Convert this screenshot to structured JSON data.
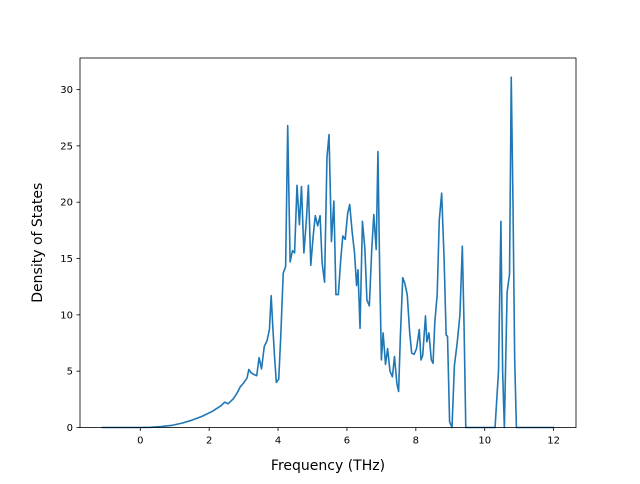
{
  "chart_data": {
    "type": "line",
    "title": "",
    "xlabel": "Frequency (THz)",
    "ylabel": "Density of States",
    "xlim": [
      -1.75,
      12.65
    ],
    "ylim": [
      0,
      32.8
    ],
    "xticks": [
      0,
      2,
      4,
      6,
      8,
      10,
      12
    ],
    "yticks": [
      0,
      5,
      10,
      15,
      20,
      25,
      30
    ],
    "grid": false,
    "series": [
      {
        "color": "#1f77b4",
        "points": [
          [
            -1.1,
            0.0
          ],
          [
            0.0,
            0.0
          ],
          [
            0.3,
            0.02
          ],
          [
            0.6,
            0.08
          ],
          [
            0.9,
            0.18
          ],
          [
            1.2,
            0.38
          ],
          [
            1.5,
            0.65
          ],
          [
            1.8,
            1.0
          ],
          [
            2.1,
            1.45
          ],
          [
            2.35,
            1.95
          ],
          [
            2.45,
            2.25
          ],
          [
            2.55,
            2.1
          ],
          [
            2.7,
            2.55
          ],
          [
            2.8,
            3.0
          ],
          [
            2.9,
            3.6
          ],
          [
            3.0,
            3.95
          ],
          [
            3.1,
            4.4
          ],
          [
            3.15,
            5.15
          ],
          [
            3.22,
            4.85
          ],
          [
            3.3,
            4.7
          ],
          [
            3.38,
            4.6
          ],
          [
            3.45,
            6.2
          ],
          [
            3.52,
            5.2
          ],
          [
            3.6,
            7.2
          ],
          [
            3.68,
            7.7
          ],
          [
            3.75,
            8.7
          ],
          [
            3.8,
            11.7
          ],
          [
            3.85,
            8.8
          ],
          [
            3.9,
            6.2
          ],
          [
            3.95,
            4.0
          ],
          [
            4.02,
            4.3
          ],
          [
            4.08,
            8.2
          ],
          [
            4.15,
            13.7
          ],
          [
            4.22,
            14.3
          ],
          [
            4.28,
            26.8
          ],
          [
            4.35,
            14.7
          ],
          [
            4.42,
            15.7
          ],
          [
            4.48,
            15.5
          ],
          [
            4.55,
            21.5
          ],
          [
            4.62,
            18.0
          ],
          [
            4.68,
            21.4
          ],
          [
            4.75,
            15.5
          ],
          [
            4.82,
            18.3
          ],
          [
            4.88,
            21.5
          ],
          [
            4.95,
            14.4
          ],
          [
            5.02,
            17.0
          ],
          [
            5.08,
            18.8
          ],
          [
            5.15,
            17.9
          ],
          [
            5.22,
            18.8
          ],
          [
            5.28,
            14.6
          ],
          [
            5.35,
            12.9
          ],
          [
            5.42,
            24.0
          ],
          [
            5.48,
            26.0
          ],
          [
            5.55,
            16.5
          ],
          [
            5.62,
            20.1
          ],
          [
            5.68,
            11.8
          ],
          [
            5.75,
            11.8
          ],
          [
            5.82,
            14.9
          ],
          [
            5.88,
            17.0
          ],
          [
            5.95,
            16.7
          ],
          [
            6.02,
            19.0
          ],
          [
            6.08,
            19.8
          ],
          [
            6.15,
            17.4
          ],
          [
            6.22,
            15.5
          ],
          [
            6.28,
            12.6
          ],
          [
            6.32,
            14.0
          ],
          [
            6.38,
            8.8
          ],
          [
            6.45,
            18.3
          ],
          [
            6.52,
            15.9
          ],
          [
            6.58,
            11.3
          ],
          [
            6.65,
            10.8
          ],
          [
            6.72,
            15.8
          ],
          [
            6.78,
            18.9
          ],
          [
            6.85,
            15.8
          ],
          [
            6.9,
            24.5
          ],
          [
            6.95,
            14.0
          ],
          [
            7.0,
            6.0
          ],
          [
            7.05,
            8.4
          ],
          [
            7.12,
            5.6
          ],
          [
            7.18,
            7.0
          ],
          [
            7.25,
            5.0
          ],
          [
            7.32,
            4.5
          ],
          [
            7.38,
            6.3
          ],
          [
            7.45,
            3.9
          ],
          [
            7.5,
            3.2
          ],
          [
            7.55,
            8.0
          ],
          [
            7.62,
            13.3
          ],
          [
            7.68,
            12.8
          ],
          [
            7.75,
            11.8
          ],
          [
            7.82,
            8.5
          ],
          [
            7.88,
            6.6
          ],
          [
            7.95,
            6.5
          ],
          [
            8.02,
            7.0
          ],
          [
            8.1,
            8.7
          ],
          [
            8.15,
            6.0
          ],
          [
            8.2,
            6.4
          ],
          [
            8.28,
            9.9
          ],
          [
            8.32,
            7.6
          ],
          [
            8.38,
            8.4
          ],
          [
            8.45,
            6.0
          ],
          [
            8.5,
            5.7
          ],
          [
            8.55,
            9.3
          ],
          [
            8.62,
            11.8
          ],
          [
            8.68,
            18.4
          ],
          [
            8.75,
            20.8
          ],
          [
            8.82,
            15.0
          ],
          [
            8.88,
            8.2
          ],
          [
            8.92,
            8.1
          ],
          [
            8.98,
            0.5
          ],
          [
            9.05,
            0.0
          ],
          [
            9.12,
            5.5
          ],
          [
            9.2,
            7.5
          ],
          [
            9.28,
            10.0
          ],
          [
            9.35,
            16.1
          ],
          [
            9.4,
            9.0
          ],
          [
            9.45,
            0.0
          ],
          [
            10.3,
            0.0
          ],
          [
            10.4,
            5.0
          ],
          [
            10.47,
            18.3
          ],
          [
            10.52,
            5.0
          ],
          [
            10.57,
            0.0
          ],
          [
            10.65,
            12.0
          ],
          [
            10.72,
            13.6
          ],
          [
            10.77,
            31.1
          ],
          [
            10.82,
            20.0
          ],
          [
            10.87,
            6.0
          ],
          [
            10.92,
            0.0
          ],
          [
            12.0,
            0.0
          ]
        ]
      }
    ]
  }
}
